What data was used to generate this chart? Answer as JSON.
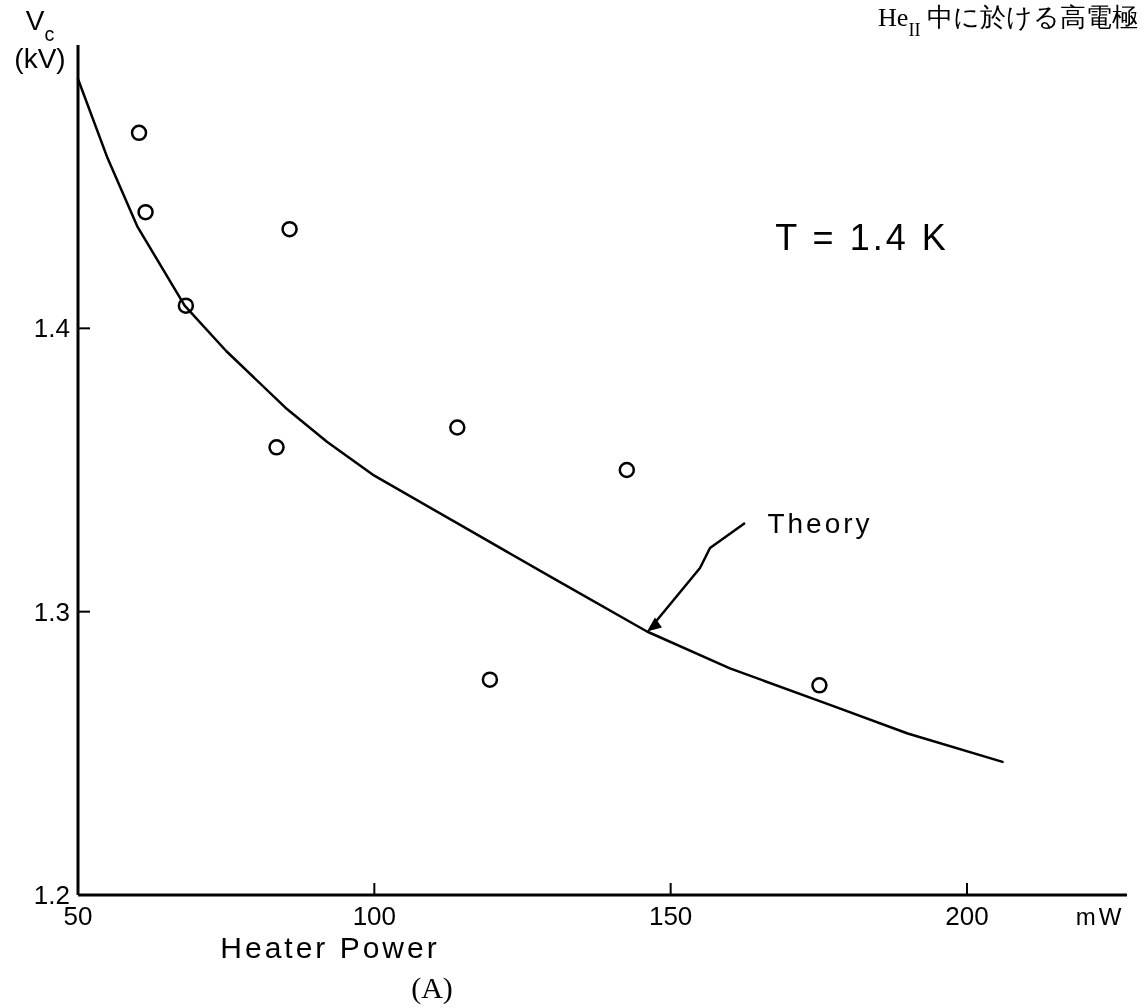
{
  "chart_data": {
    "type": "scatter",
    "xlabel": "Heater Power",
    "ylabel": "V$_{c}$\n(kV)",
    "xlim": [
      50,
      227
    ],
    "ylim": [
      1.2,
      1.5
    ],
    "xticks": [
      50,
      100,
      150,
      200
    ],
    "yticks": [
      1.2,
      1.3,
      1.4
    ],
    "grid": false,
    "series": [
      {
        "type": "scatter",
        "color": "#000000",
        "marker": "circle",
        "x": [
          60.3,
          61.4,
          68.2,
          85.7,
          83.5,
          114.0,
          142.6,
          119.5,
          175.1
        ],
        "values": [
          1.469,
          1.441,
          1.408,
          1.435,
          1.358,
          1.365,
          1.35,
          1.276,
          1.274
        ]
      },
      {
        "type": "line",
        "color": "#000000",
        "marker": "none",
        "line_style": "solid",
        "x": [
          50,
          55,
          60,
          68,
          75,
          85,
          92,
          100,
          115,
          130,
          146,
          160,
          177,
          190,
          206
        ],
        "values": [
          1.488,
          1.46,
          1.436,
          1.408,
          1.392,
          1.372,
          1.36,
          1.348,
          1.33,
          1.312,
          1.293,
          1.28,
          1.267,
          1.257,
          1.247
        ]
      }
    ],
    "annotations": [
      "He$_{II}$ 中に於ける高電極",
      "T = 1.4 K",
      {
        "text": "Theory",
        "x": 146,
        "y": 1.293
      },
      "mW",
      "(A)"
    ]
  }
}
